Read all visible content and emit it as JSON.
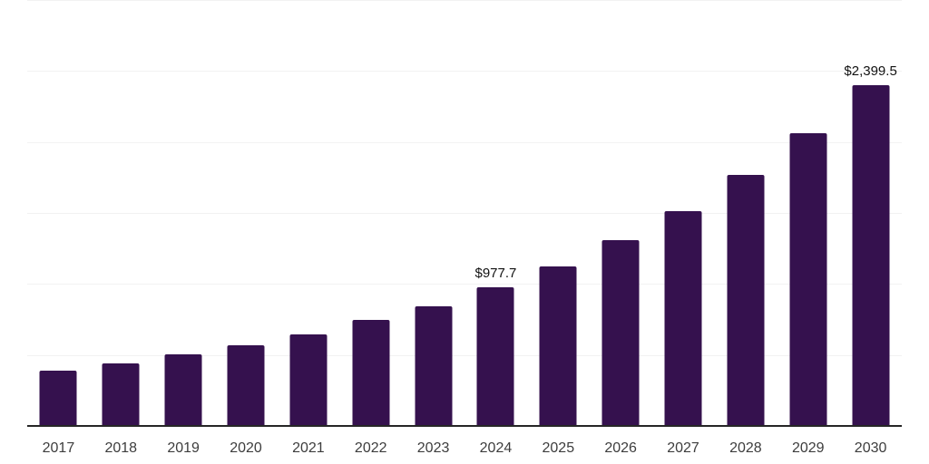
{
  "chart_data": {
    "type": "bar",
    "title": "",
    "xlabel": "",
    "ylabel": "",
    "categories": [
      "2017",
      "2018",
      "2019",
      "2020",
      "2021",
      "2022",
      "2023",
      "2024",
      "2025",
      "2026",
      "2027",
      "2028",
      "2029",
      "2030"
    ],
    "values": [
      390,
      442,
      506,
      570,
      646,
      749,
      845,
      977.7,
      1126,
      1306,
      1510,
      1766,
      2061,
      2399.5
    ],
    "data_labels": [
      "",
      "",
      "",
      "",
      "",
      "",
      "",
      "$977.7",
      "",
      "",
      "",
      "",
      "",
      "$2,399.5"
    ],
    "ylim": [
      0,
      3000
    ],
    "gridline_values": [
      500,
      1000,
      1500,
      2000,
      2500,
      3000
    ],
    "grid": "horizontal",
    "legend": "none",
    "colors": {
      "bar": "#35114e",
      "gridline": "#f2f2f2",
      "axis": "#262626",
      "tick_label": "#3d3d3d",
      "data_label": "#111111",
      "background": "#ffffff"
    }
  }
}
